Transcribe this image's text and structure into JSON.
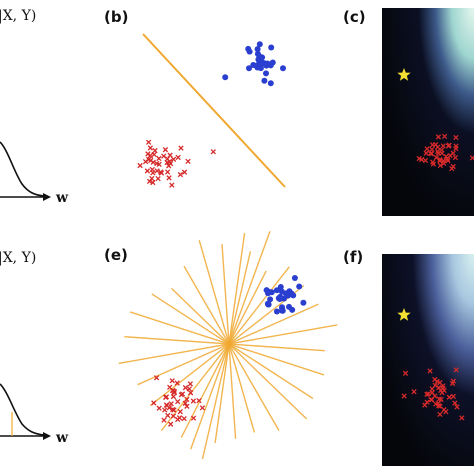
{
  "panels": {
    "a": {
      "heading": "|X, Y)",
      "axis_label": "w"
    },
    "b": {
      "label": "(b)"
    },
    "c": {
      "label": "(c)"
    },
    "d": {
      "heading": "|X, Y)",
      "axis_label": "w"
    },
    "e": {
      "label": "(e)"
    },
    "f": {
      "label": "(f)"
    }
  },
  "colors": {
    "blue_cluster": "#2a3fd0",
    "red_cross": "#d62a2a",
    "orange_line": "#f0a830",
    "star": "#f2e033",
    "heatmap_dark": "#05060a",
    "heatmap_light": "#d8f2ea"
  },
  "icons": {
    "star": "star-icon",
    "cross": "x-mark"
  }
}
